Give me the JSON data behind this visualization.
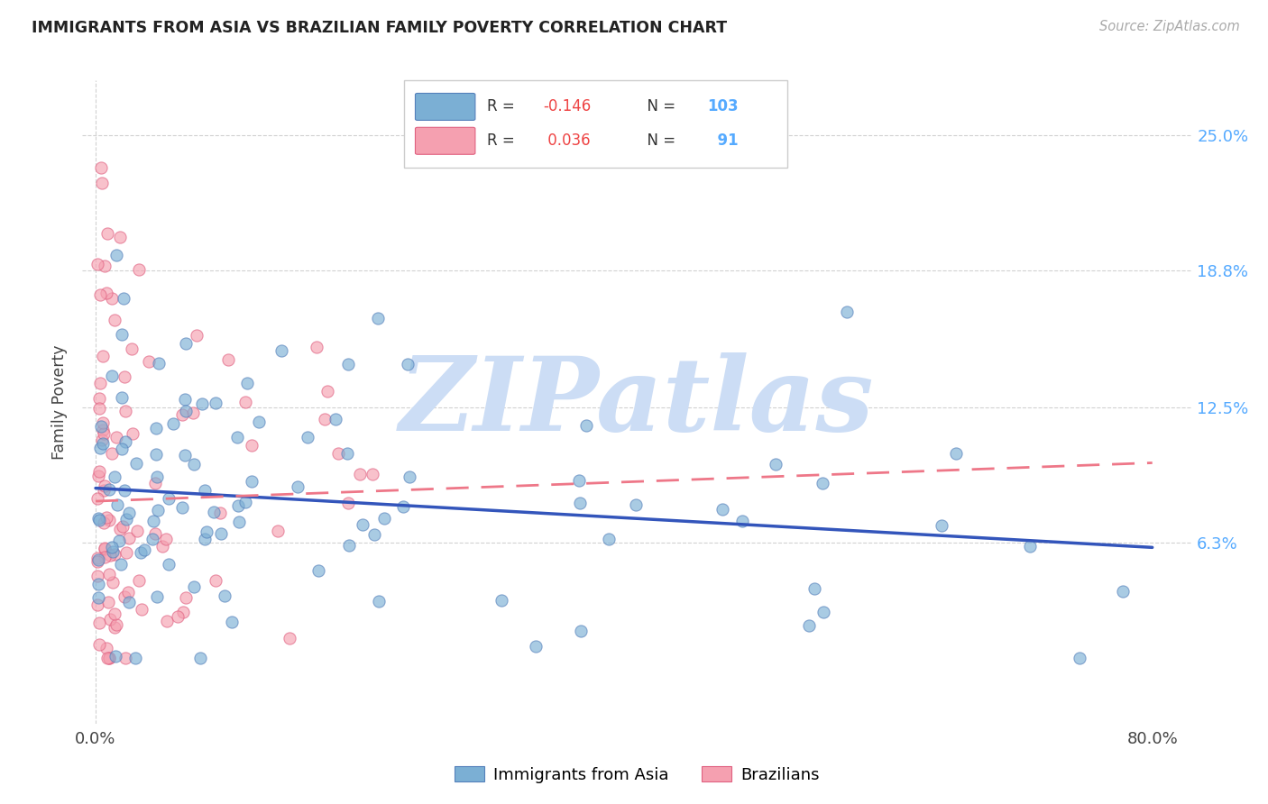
{
  "title": "IMMIGRANTS FROM ASIA VS BRAZILIAN FAMILY POVERTY CORRELATION CHART",
  "source": "Source: ZipAtlas.com",
  "ylabel": "Family Poverty",
  "ytick_vals": [
    0.063,
    0.125,
    0.188,
    0.25
  ],
  "ytick_labels": [
    "6.3%",
    "12.5%",
    "18.8%",
    "25.0%"
  ],
  "xtick_vals": [
    0.0,
    0.8
  ],
  "xtick_labels": [
    "0.0%",
    "80.0%"
  ],
  "xlim": [
    -0.01,
    0.83
  ],
  "ylim": [
    -0.02,
    0.275
  ],
  "blue_color": "#7bafd4",
  "pink_color": "#f5a0b0",
  "blue_edge_color": "#5580bb",
  "pink_edge_color": "#e06080",
  "blue_line_color": "#3355bb",
  "pink_line_color": "#ee7788",
  "blue_intercept": 0.088,
  "blue_slope": -0.034,
  "pink_intercept": 0.082,
  "pink_slope": 0.022,
  "watermark": "ZIPatlas",
  "watermark_color": "#ccddf5",
  "n_blue": 103,
  "n_pink": 91,
  "R_blue": -0.146,
  "R_pink": 0.036,
  "grid_color": "#cccccc",
  "title_color": "#222222",
  "source_color": "#aaaaaa",
  "right_tick_color": "#55aaff",
  "legend_edge_color": "#cccccc"
}
